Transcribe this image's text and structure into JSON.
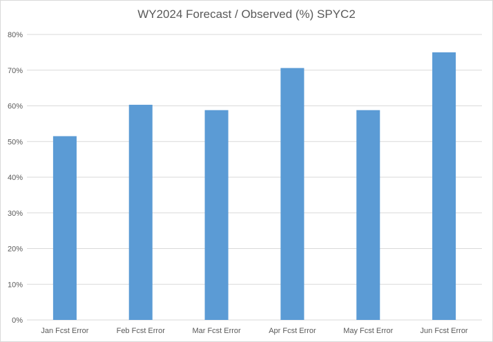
{
  "chart_data": {
    "type": "bar",
    "title": "WY2024 Forecast / Observed (%) SPYC2",
    "xlabel": "",
    "ylabel": "",
    "categories": [
      "Jan Fcst Error",
      "Feb Fcst Error",
      "Mar Fcst Error",
      "Apr Fcst Error",
      "May Fcst Error",
      "Jun Fcst Error"
    ],
    "values": [
      51.5,
      60.3,
      58.8,
      70.6,
      58.8,
      75.0
    ],
    "ylim": [
      0,
      80
    ],
    "yticks": [
      "0%",
      "10%",
      "20%",
      "30%",
      "40%",
      "50%",
      "60%",
      "70%",
      "80%"
    ],
    "grid": true,
    "legend": "none",
    "bar_color": "#5b9bd5",
    "grid_color": "#d9d9d9",
    "text_color": "#595959"
  }
}
